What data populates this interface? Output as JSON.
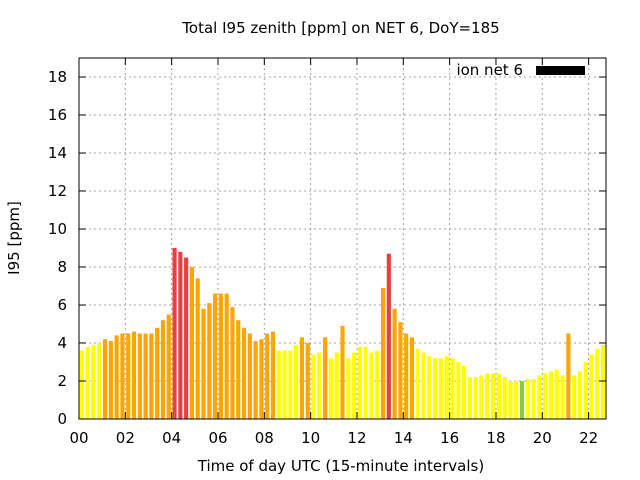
{
  "chart_data": {
    "type": "bar",
    "title": "Total I95 zenith [ppm] on NET 6, DoY=185",
    "xlabel": "Time of day UTC (15-minute intervals)",
    "ylabel": "I95 [ppm]",
    "xlim": [
      0,
      22.75
    ],
    "ylim": [
      0,
      19
    ],
    "x_ticks": [
      0,
      2,
      4,
      6,
      8,
      10,
      12,
      14,
      16,
      18,
      20,
      22
    ],
    "x_tick_labels": [
      "00",
      "02",
      "04",
      "06",
      "08",
      "10",
      "12",
      "14",
      "16",
      "18",
      "20",
      "22"
    ],
    "y_ticks": [
      0,
      2,
      4,
      6,
      8,
      10,
      12,
      14,
      16,
      18
    ],
    "y_tick_labels": [
      "0",
      "2",
      "4",
      "6",
      "8",
      "10",
      "12",
      "14",
      "16",
      "18"
    ],
    "grid": true,
    "legend": {
      "label": "ion net 6",
      "color": "#000000",
      "placement": "top-right"
    },
    "bar_interval_hours": 0.25,
    "color_scale": {
      "low": "#ffff00",
      "mid": "#ffa500",
      "high": "#e84040",
      "lowest": "#88cc44"
    },
    "values": [
      3.6,
      3.8,
      3.9,
      4.0,
      4.2,
      4.1,
      4.4,
      4.5,
      4.5,
      4.6,
      4.5,
      4.5,
      4.5,
      4.8,
      5.2,
      5.5,
      9.0,
      8.8,
      8.5,
      8.0,
      7.4,
      5.8,
      6.1,
      6.6,
      6.6,
      6.6,
      5.9,
      5.2,
      4.8,
      4.5,
      4.1,
      4.2,
      4.5,
      4.6,
      3.6,
      3.6,
      3.6,
      3.9,
      4.3,
      4.0,
      3.4,
      3.5,
      4.3,
      3.2,
      3.5,
      4.9,
      3.2,
      3.5,
      3.8,
      3.8,
      3.5,
      3.6,
      6.9,
      8.7,
      5.8,
      5.1,
      4.5,
      4.3,
      3.7,
      3.5,
      3.3,
      3.2,
      3.2,
      3.3,
      3.2,
      3.0,
      2.8,
      2.2,
      2.2,
      2.3,
      2.4,
      2.4,
      2.4,
      2.2,
      2.0,
      2.0,
      2.0,
      2.1,
      2.1,
      2.3,
      2.4,
      2.5,
      2.6,
      2.3,
      4.5,
      2.3,
      2.5,
      3.0,
      3.4,
      3.7,
      3.9
    ],
    "bar_colors": [
      "#ffff00",
      "#ffff00",
      "#ffff00",
      "#ffff00",
      "#ffa500",
      "#ffa500",
      "#ffa500",
      "#ffa500",
      "#ffa500",
      "#ffa500",
      "#ffa500",
      "#ffa500",
      "#ffa500",
      "#ffa500",
      "#ffa500",
      "#ffa500",
      "#e84040",
      "#e84040",
      "#e84040",
      "#ffa500",
      "#ffa500",
      "#ffa500",
      "#ffa500",
      "#ffa500",
      "#ffa500",
      "#ffa500",
      "#ffa500",
      "#ffa500",
      "#ffa500",
      "#ffa500",
      "#ffa500",
      "#ffa500",
      "#ffa500",
      "#ffa500",
      "#ffff00",
      "#ffff00",
      "#ffff00",
      "#ffff00",
      "#ffa500",
      "#ffa500",
      "#ffff00",
      "#ffff00",
      "#ffa500",
      "#ffff00",
      "#ffff00",
      "#ffa500",
      "#ffff00",
      "#ffff00",
      "#ffff00",
      "#ffff00",
      "#ffff00",
      "#ffff00",
      "#ffa500",
      "#e84040",
      "#ffa500",
      "#ffa500",
      "#ffa500",
      "#ffa500",
      "#ffff00",
      "#ffff00",
      "#ffff00",
      "#ffff00",
      "#ffff00",
      "#ffff00",
      "#ffff00",
      "#ffff00",
      "#ffff00",
      "#ffff00",
      "#ffff00",
      "#ffff00",
      "#ffff00",
      "#ffff00",
      "#ffff00",
      "#ffff00",
      "#ffff00",
      "#ffff00",
      "#88cc44",
      "#ffff00",
      "#ffff00",
      "#ffff00",
      "#ffff00",
      "#ffff00",
      "#ffff00",
      "#ffff00",
      "#ffa500",
      "#ffff00",
      "#ffff00",
      "#ffff00",
      "#ffff00",
      "#ffff00",
      "#ffff00"
    ]
  }
}
